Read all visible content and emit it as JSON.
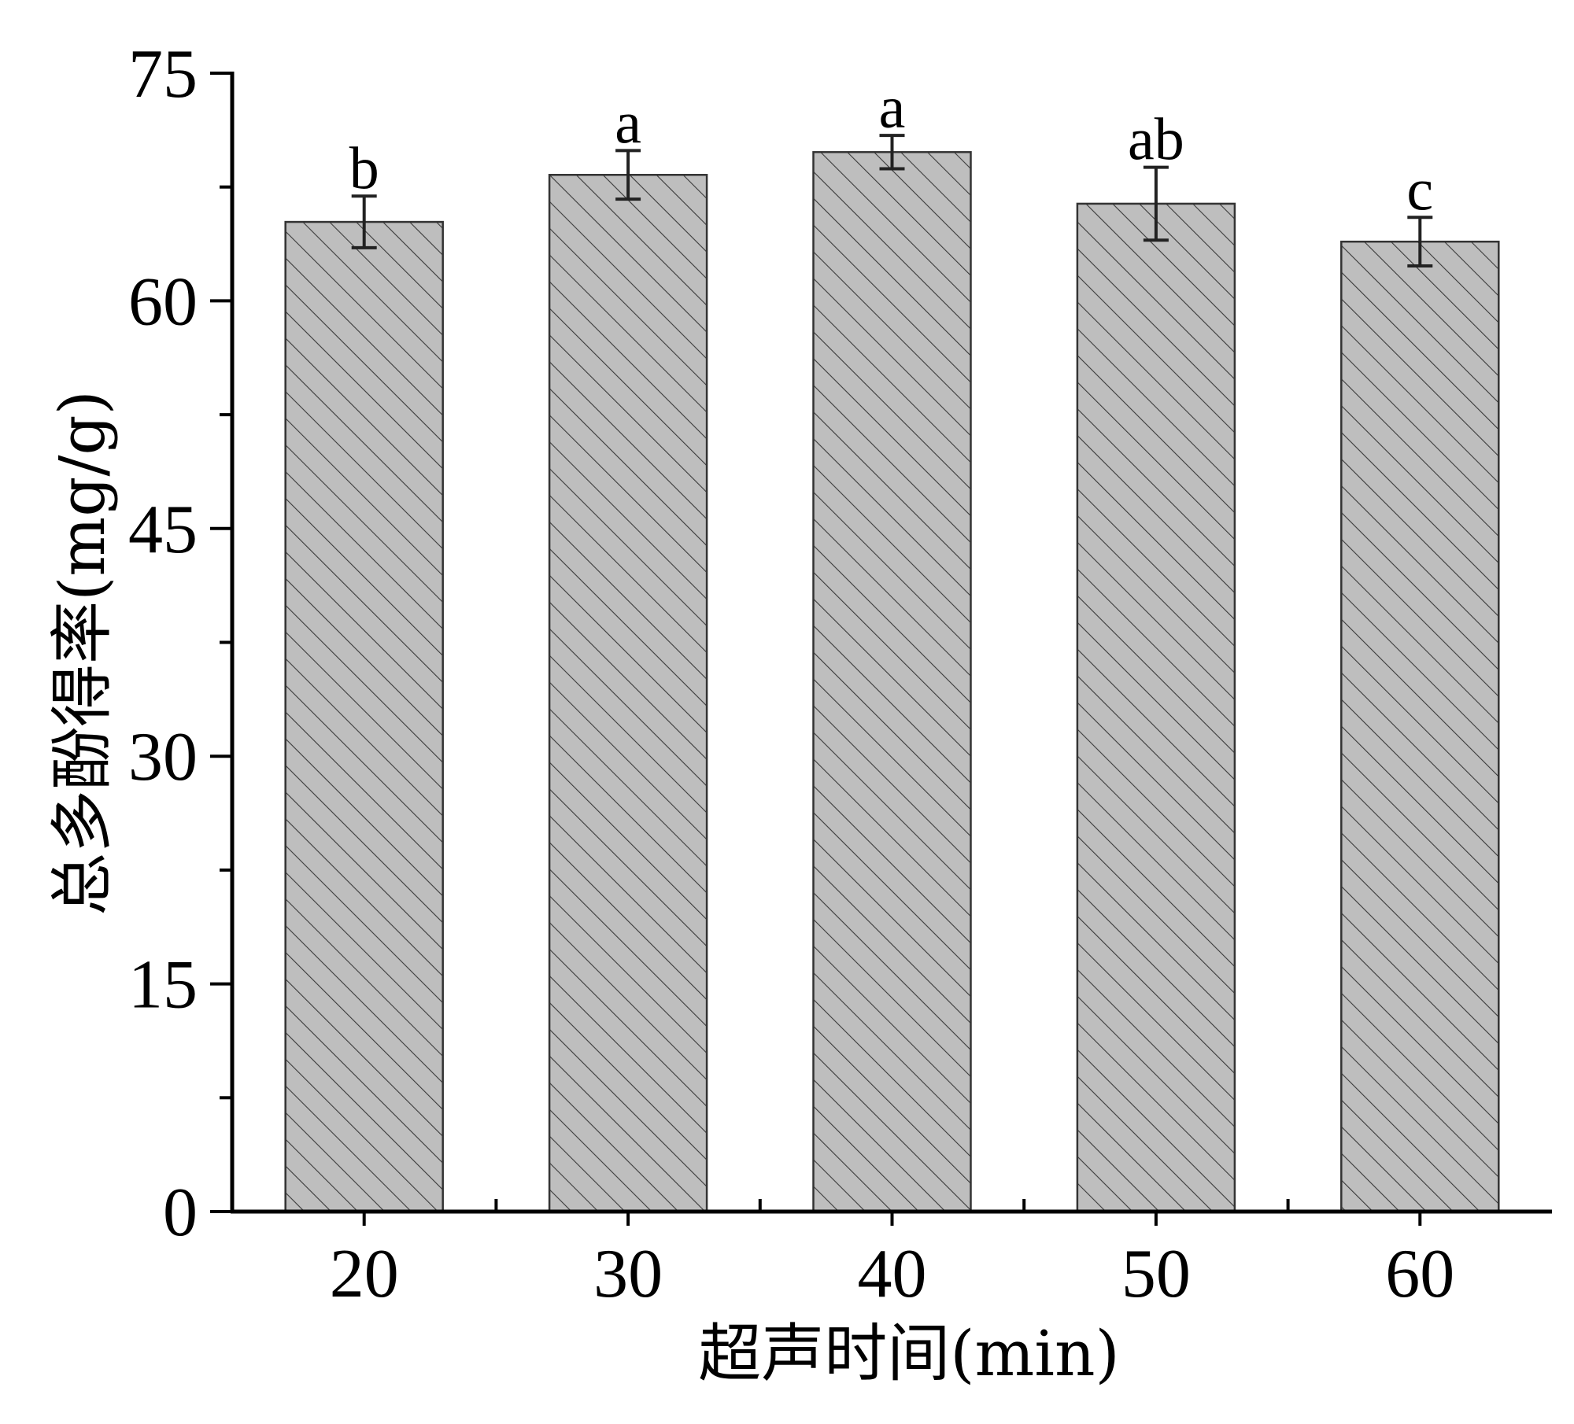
{
  "chart_data": {
    "type": "bar",
    "categories": [
      "20",
      "30",
      "40",
      "50",
      "60"
    ],
    "values": [
      65.2,
      68.3,
      69.8,
      66.4,
      63.9
    ],
    "errors": [
      1.7,
      1.6,
      1.1,
      2.4,
      1.6
    ],
    "significance_labels": [
      "b",
      "a",
      "a",
      "ab",
      "c"
    ],
    "xlabel": "超声时间(min)",
    "ylabel": "总多酚得率(mg/g)",
    "ylim": [
      0,
      75
    ],
    "yticks": [
      0,
      15,
      30,
      45,
      60,
      75
    ],
    "ytick_labels": [
      "0",
      "15",
      "30",
      "45",
      "60",
      "75"
    ],
    "y_minor_step": 7.5,
    "grid": false,
    "legend": "none",
    "bar_color": "#bebebe",
    "hatch_color": "#3a3a3a",
    "hatch": "diagonal"
  }
}
